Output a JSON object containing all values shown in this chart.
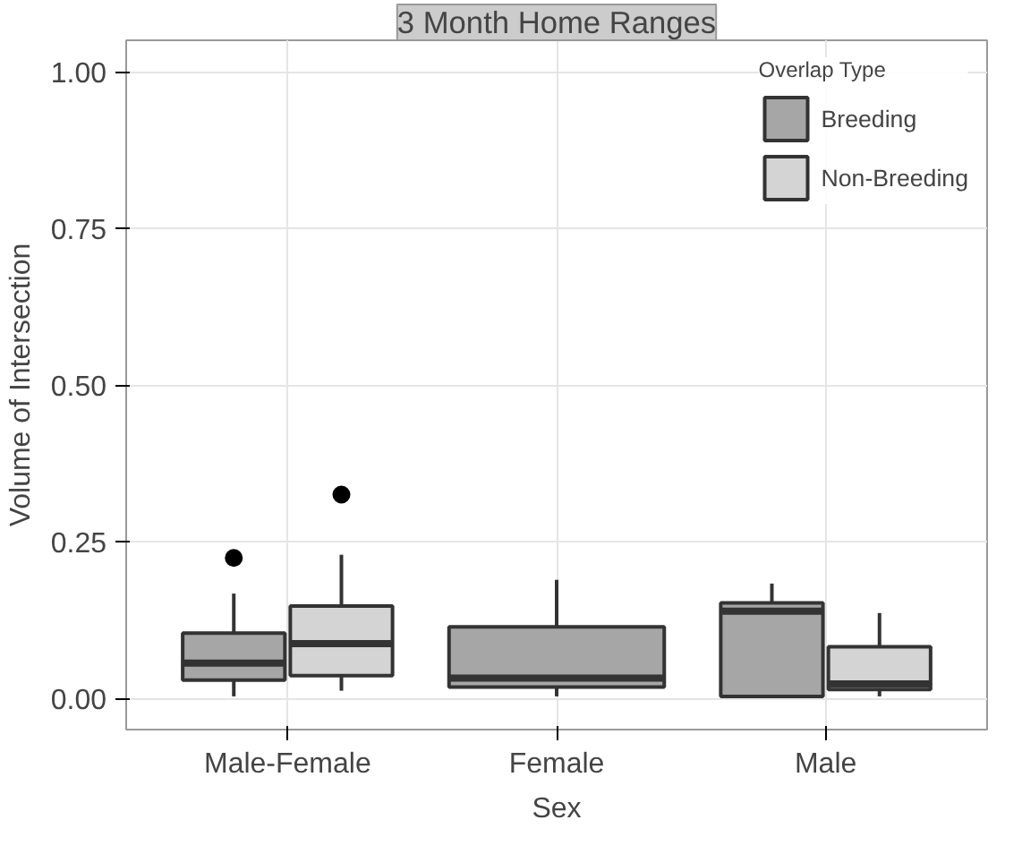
{
  "chart_data": {
    "type": "box",
    "title": "3 Month Home Ranges",
    "xlabel": "Sex",
    "ylabel": "Volume of Intersection",
    "legend_title": "Overlap Type",
    "categories": [
      "Male-Female",
      "Female",
      "Male"
    ],
    "series": [
      {
        "name": "Breeding",
        "color": "#a6a6a6",
        "boxes": [
          {
            "low": 0.003,
            "q1": 0.029,
            "median": 0.056,
            "q3": 0.104,
            "high": 0.167,
            "outliers": [
              0.224
            ]
          },
          {
            "low": 0.003,
            "q1": 0.018,
            "median": 0.032,
            "q3": 0.114,
            "high": 0.189
          },
          {
            "low": 0.003,
            "q1": 0.003,
            "median": 0.139,
            "q3": 0.152,
            "high": 0.183
          }
        ]
      },
      {
        "name": "Non-Breeding",
        "color": "#d4d4d4",
        "boxes": [
          {
            "low": 0.012,
            "q1": 0.036,
            "median": 0.087,
            "q3": 0.147,
            "high": 0.229,
            "outliers": [
              0.325
            ]
          },
          null,
          {
            "low": 0.003,
            "q1": 0.014,
            "median": 0.023,
            "q3": 0.082,
            "high": 0.136
          }
        ]
      }
    ],
    "ylim": [
      -0.05,
      1.05
    ],
    "yticks": [
      {
        "value": 0,
        "label": "0.00"
      },
      {
        "value": 0.25,
        "label": "0.25"
      },
      {
        "value": 0.5,
        "label": "0.50"
      },
      {
        "value": 0.75,
        "label": "0.75"
      },
      {
        "value": 1,
        "label": "1.00"
      }
    ],
    "grid": true,
    "legend": "top right"
  }
}
